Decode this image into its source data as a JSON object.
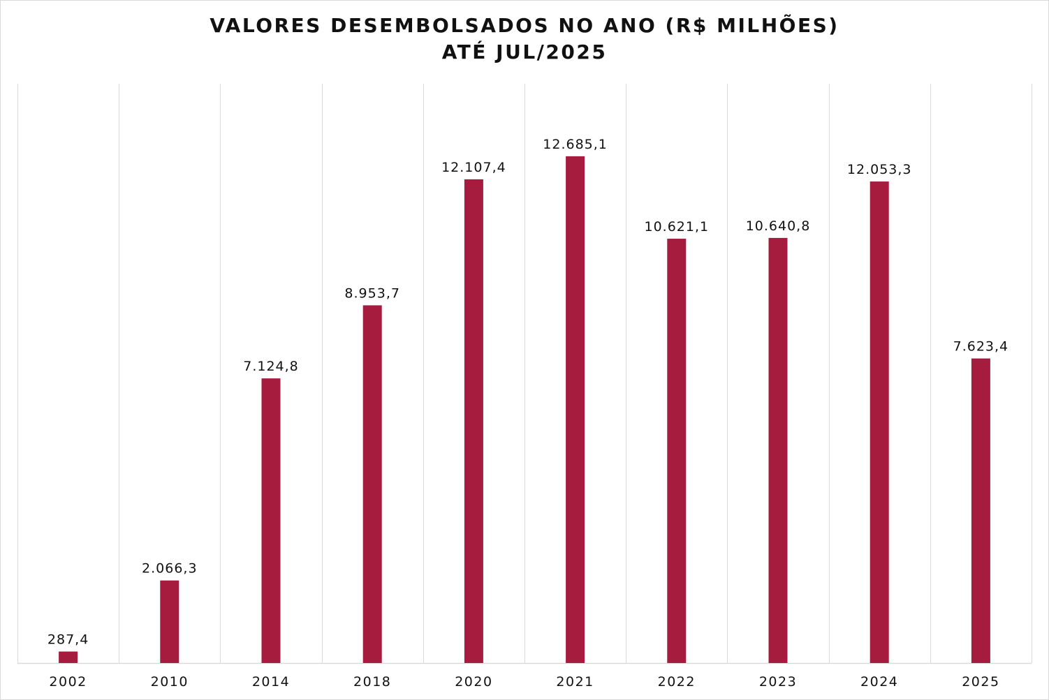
{
  "chart_data": {
    "type": "bar",
    "title": "VALORES DESEMBOLSADOS NO ANO (R$ MILHÕES)",
    "subtitle": "ATÉ JUL/2025",
    "categories": [
      "2002",
      "2010",
      "2014",
      "2018",
      "2020",
      "2021",
      "2022",
      "2023",
      "2024",
      "2025"
    ],
    "values": [
      287.4,
      2066.3,
      7124.8,
      8953.7,
      12107.4,
      12685.1,
      10621.1,
      10640.8,
      12053.3,
      7623.4
    ],
    "value_labels": [
      "287,4",
      "2.066,3",
      "7.124,8",
      "8.953,7",
      "12.107,4",
      "12.685,1",
      "10.621,1",
      "10.640,8",
      "12.053,3",
      "7.623,4"
    ],
    "ylim": [
      0,
      14500
    ],
    "bar_color": "#a51c3f",
    "gridline_color": "#d9d9d9",
    "grid": "vertical category separators",
    "legend": "none",
    "xlabel": "",
    "ylabel": ""
  }
}
